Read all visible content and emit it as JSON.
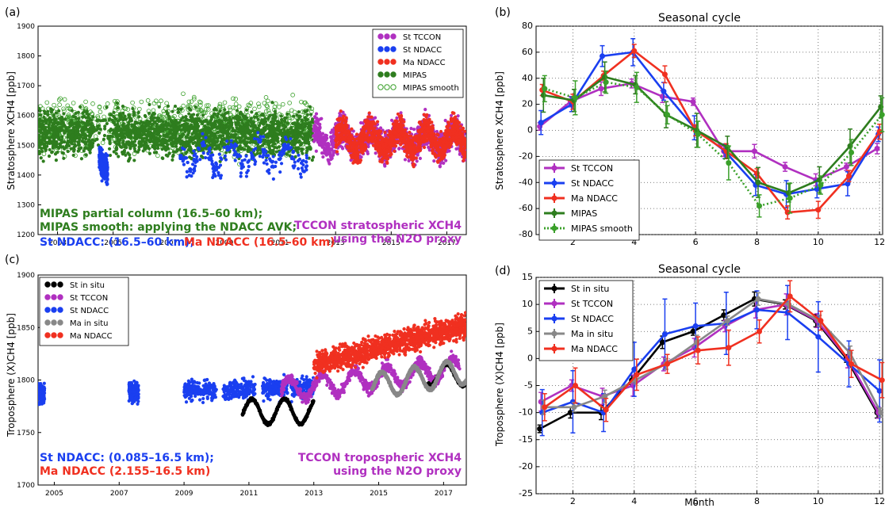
{
  "panels": {
    "a": {
      "tag": "(a)",
      "ylabel": "Stratosphere XCH4 [ppb]",
      "ylim": [
        1200,
        1900
      ],
      "yticks": [
        "1200",
        "1300",
        "1400",
        "1500",
        "1600",
        "1700",
        "1800",
        "1900"
      ],
      "xlim": [
        2002.3,
        2017.7
      ],
      "xticks": [
        "2003",
        "2005",
        "2007",
        "2009",
        "2011",
        "2013",
        "2015",
        "2017"
      ],
      "legend": [
        "St TCCON",
        "St NDACC",
        "Ma NDACC",
        "MIPAS",
        "MIPAS smooth"
      ],
      "notes": {
        "mipas1": "MIPAS partial column (16.5–60 km);",
        "mipas2": "MIPAS smooth: applying the NDACC AVK;",
        "stndacc": "St NDACC: (16.5–60 km);",
        "mandacc": "Ma NDACC (16.5–60 km)",
        "tccon1": "TCCON stratospheric XCH4",
        "tccon2": "using the N2O proxy"
      }
    },
    "b": {
      "tag": "(b)",
      "title": "Seasonal cycle",
      "ylabel": "Stratosphere XCH4 [ppb]",
      "yticks": [
        "-80",
        "-60",
        "-40",
        "-20",
        "0",
        "20",
        "40",
        "60",
        "80"
      ],
      "xticks": [
        "2",
        "4",
        "6",
        "8",
        "10",
        "12"
      ],
      "legend": [
        "St TCCON",
        "St NDACC",
        "Ma NDACC",
        "MIPAS",
        "MIPAS smooth"
      ]
    },
    "c": {
      "tag": "(c)",
      "ylabel": "Troposphere (X)CH4 [ppb]",
      "ylim": [
        1700,
        1900
      ],
      "yticks": [
        "1700",
        "1750",
        "1800",
        "1850",
        "1900"
      ],
      "xlim": [
        2004.5,
        2017.7
      ],
      "xticks": [
        "2005",
        "2007",
        "2009",
        "2011",
        "2013",
        "2015",
        "2017"
      ],
      "legend": [
        "St in situ",
        "St TCCON",
        "St NDACC",
        "Ma in situ",
        "Ma NDACC"
      ],
      "notes": {
        "stndacc": "St NDACC: (0.085–16.5 km);",
        "mandacc": "Ma NDACC (2.155–16.5 km)",
        "tccon1": "TCCON tropospheric XCH4",
        "tccon2": "using the N2O proxy"
      }
    },
    "d": {
      "tag": "(d)",
      "title": "Seasonal cycle",
      "ylabel": "Troposphere (X)CH4 [ppb]",
      "xlabel": "Month",
      "yticks": [
        "-25",
        "-20",
        "-15",
        "-10",
        "-5",
        "0",
        "5",
        "10",
        "15"
      ],
      "xticks": [
        "2",
        "4",
        "6",
        "8",
        "10",
        "12"
      ],
      "legend": [
        "St in situ",
        "St TCCON",
        "St NDACC",
        "Ma in situ",
        "Ma NDACC"
      ]
    }
  },
  "colors": {
    "st_tccon": "#b030c0",
    "st_ndacc": "#1a3ff0",
    "ma_ndacc": "#f03020",
    "mipas": "#2e7d1e",
    "mipas_smooth": "#3aa02a",
    "st_insitu": "#000000",
    "ma_insitu": "#888888"
  },
  "chart_data": [
    {
      "type": "scatter",
      "panel": "a",
      "ylabel": "Stratosphere XCH4 [ppb]",
      "xlim": [
        2002.3,
        2017.7
      ],
      "ylim": [
        1200,
        1900
      ],
      "series": [
        {
          "name": "MIPAS",
          "x_range": [
            2002.3,
            2012.2
          ],
          "y_center": 1540,
          "y_spread": 110
        },
        {
          "name": "MIPAS smooth",
          "x_range": [
            2002.3,
            2012.2
          ],
          "y_center": 1560,
          "y_spread": 130
        },
        {
          "name": "St NDACC",
          "segments": [
            [
              2004.5,
              2004.8
            ],
            [
              2007.3,
              2012.0
            ]
          ],
          "y_center": 1460,
          "y_spread": 60
        },
        {
          "name": "St TCCON",
          "x_range": [
            2012.2,
            2017.7
          ],
          "y_center": 1520,
          "y_spread": 80
        },
        {
          "name": "Ma NDACC",
          "x_range": [
            2013.0,
            2017.7
          ],
          "y_center": 1520,
          "y_spread": 70
        }
      ]
    },
    {
      "type": "line",
      "panel": "b",
      "title": "Seasonal cycle",
      "ylabel": "Stratosphere XCH4 [ppb]",
      "xlim": [
        0.8,
        12.1
      ],
      "ylim": [
        -80,
        80
      ],
      "x": [
        1,
        2,
        3,
        4,
        5,
        6,
        7,
        8,
        9,
        10,
        11,
        12
      ],
      "series": [
        {
          "name": "St TCCON",
          "values": [
            3,
            22,
            32,
            36,
            26,
            22,
            -16,
            -16,
            -28,
            -38,
            -28,
            -14
          ],
          "err": 4
        },
        {
          "name": "St NDACC",
          "values": [
            6,
            20,
            57,
            60,
            30,
            2,
            -16,
            -42,
            -49,
            -45,
            -41,
            -3
          ],
          "err": 8
        },
        {
          "name": "Ma NDACC",
          "values": [
            31,
            22,
            42,
            61,
            43,
            0,
            -16,
            -33,
            -63,
            -61,
            -35,
            -1
          ],
          "err": 5
        },
        {
          "name": "MIPAS",
          "values": [
            27,
            23,
            41,
            35,
            12,
            0,
            -13,
            -40,
            -48,
            -38,
            -12,
            18
          ],
          "err": 10
        },
        {
          "name": "MIPAS smooth",
          "values": [
            32,
            25,
            37,
            33,
            12,
            -3,
            -25,
            -58,
            -52,
            -42,
            -17,
            12
          ],
          "err": 10
        }
      ]
    },
    {
      "type": "scatter",
      "panel": "c",
      "ylabel": "Troposphere (X)CH4 [ppb]",
      "xlim": [
        2004.5,
        2017.7
      ],
      "ylim": [
        1700,
        1900
      ],
      "series": [
        {
          "name": "St NDACC",
          "y_center": 1790,
          "y_spread": 25
        },
        {
          "name": "St in situ",
          "x_range": [
            2010.8,
            2013.0
          ],
          "y_center": 1772
        },
        {
          "name": "St TCCON",
          "x_range": [
            2012.0,
            2017.5
          ],
          "y_center": 1800
        },
        {
          "name": "Ma in situ",
          "x_range": [
            2014.8,
            2017.7
          ],
          "y_center": 1795
        },
        {
          "name": "Ma NDACC",
          "x_range": [
            2013.0,
            2017.7
          ],
          "y_center": 1830
        }
      ]
    },
    {
      "type": "line",
      "panel": "d",
      "title": "Seasonal cycle",
      "xlabel": "Month",
      "ylabel": "Troposphere (X)CH4 [ppb]",
      "xlim": [
        0.8,
        12.1
      ],
      "ylim": [
        -25,
        15
      ],
      "x": [
        1,
        2,
        3,
        4,
        5,
        6,
        7,
        8,
        9,
        10,
        11,
        12
      ],
      "series": [
        {
          "name": "St in situ",
          "values": [
            -13,
            -10,
            -10,
            -4,
            3,
            5,
            8,
            11,
            10,
            7,
            0,
            -10
          ],
          "err": 1
        },
        {
          "name": "St TCCON",
          "values": [
            -8,
            -5,
            -7,
            -5,
            -1,
            2,
            6,
            9,
            10,
            7,
            0,
            -10
          ],
          "err": 1.5
        },
        {
          "name": "St NDACC",
          "values": [
            -10,
            -8,
            -10,
            -2,
            4.5,
            6,
            6.5,
            9,
            8.5,
            4,
            -1,
            -6
          ],
          "err": 5
        },
        {
          "name": "Ma in situ",
          "values": [
            -9,
            -9,
            -7,
            -4,
            -1,
            3,
            7,
            11,
            10,
            7,
            1,
            -10
          ],
          "err": 1
        },
        {
          "name": "Ma NDACC",
          "values": [
            -9,
            -5,
            -9.5,
            -3,
            -1,
            1.5,
            2,
            5,
            11.5,
            7,
            -1,
            -4
          ],
          "err": 2.5
        }
      ]
    }
  ]
}
